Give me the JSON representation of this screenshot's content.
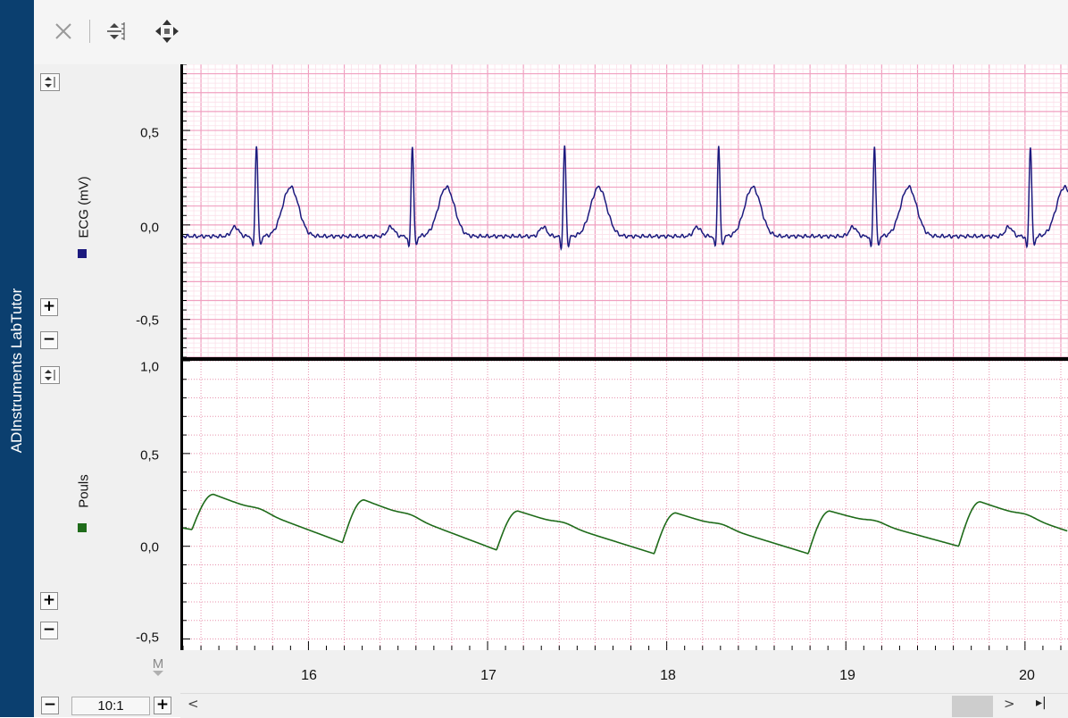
{
  "app": {
    "sidebar_title": "ADInstruments LabTutor"
  },
  "toolbar": {
    "buttons": [
      {
        "icon": "close-icon",
        "enabled": false
      },
      {
        "icon": "autoscale-icon",
        "enabled": true
      },
      {
        "icon": "move-icon",
        "enabled": true
      }
    ]
  },
  "channels": [
    {
      "name": "ECG (mV)",
      "color": "#1c1a7e",
      "y_ticks": [
        "0,5",
        "0,0",
        "-0,5"
      ],
      "grid_style": "ecg-paper"
    },
    {
      "name": "Pouls",
      "color": "#1f6b1a",
      "y_ticks": [
        "1,0",
        "0,5",
        "0,0",
        "-0,5"
      ],
      "grid_style": "dotted"
    }
  ],
  "x_axis": {
    "ticks": [
      "16",
      "17",
      "18",
      "19",
      "20"
    ],
    "marker_label": "M"
  },
  "zoom": {
    "ratio": "10:1",
    "minus": "−",
    "plus": "+"
  },
  "scroll": {
    "left": "<",
    "right": ">",
    "end": "▸|"
  },
  "chart_data": [
    {
      "type": "line",
      "ylabel": "ECG (mV)",
      "xlim": [
        15.3,
        20.24
      ],
      "ylim": [
        -0.7,
        0.85
      ],
      "series": [
        {
          "name": "ECG (mV)",
          "beat_times": [
            15.71,
            16.58,
            17.43,
            18.29,
            19.16,
            20.03
          ],
          "baseline": -0.06,
          "r_peak": 0.4,
          "t_peak": 0.22
        }
      ]
    },
    {
      "type": "line",
      "ylabel": "Pouls",
      "xlim": [
        15.3,
        20.24
      ],
      "ylim": [
        -0.56,
        1.0
      ],
      "series": [
        {
          "name": "Pouls",
          "foot_times": [
            15.35,
            16.19,
            17.05,
            17.93,
            18.79,
            19.63
          ],
          "foot_values": [
            0.09,
            0.02,
            -0.02,
            -0.04,
            -0.04,
            0.0
          ],
          "peak_values": [
            0.28,
            0.25,
            0.19,
            0.18,
            0.19,
            0.24
          ]
        }
      ]
    }
  ]
}
